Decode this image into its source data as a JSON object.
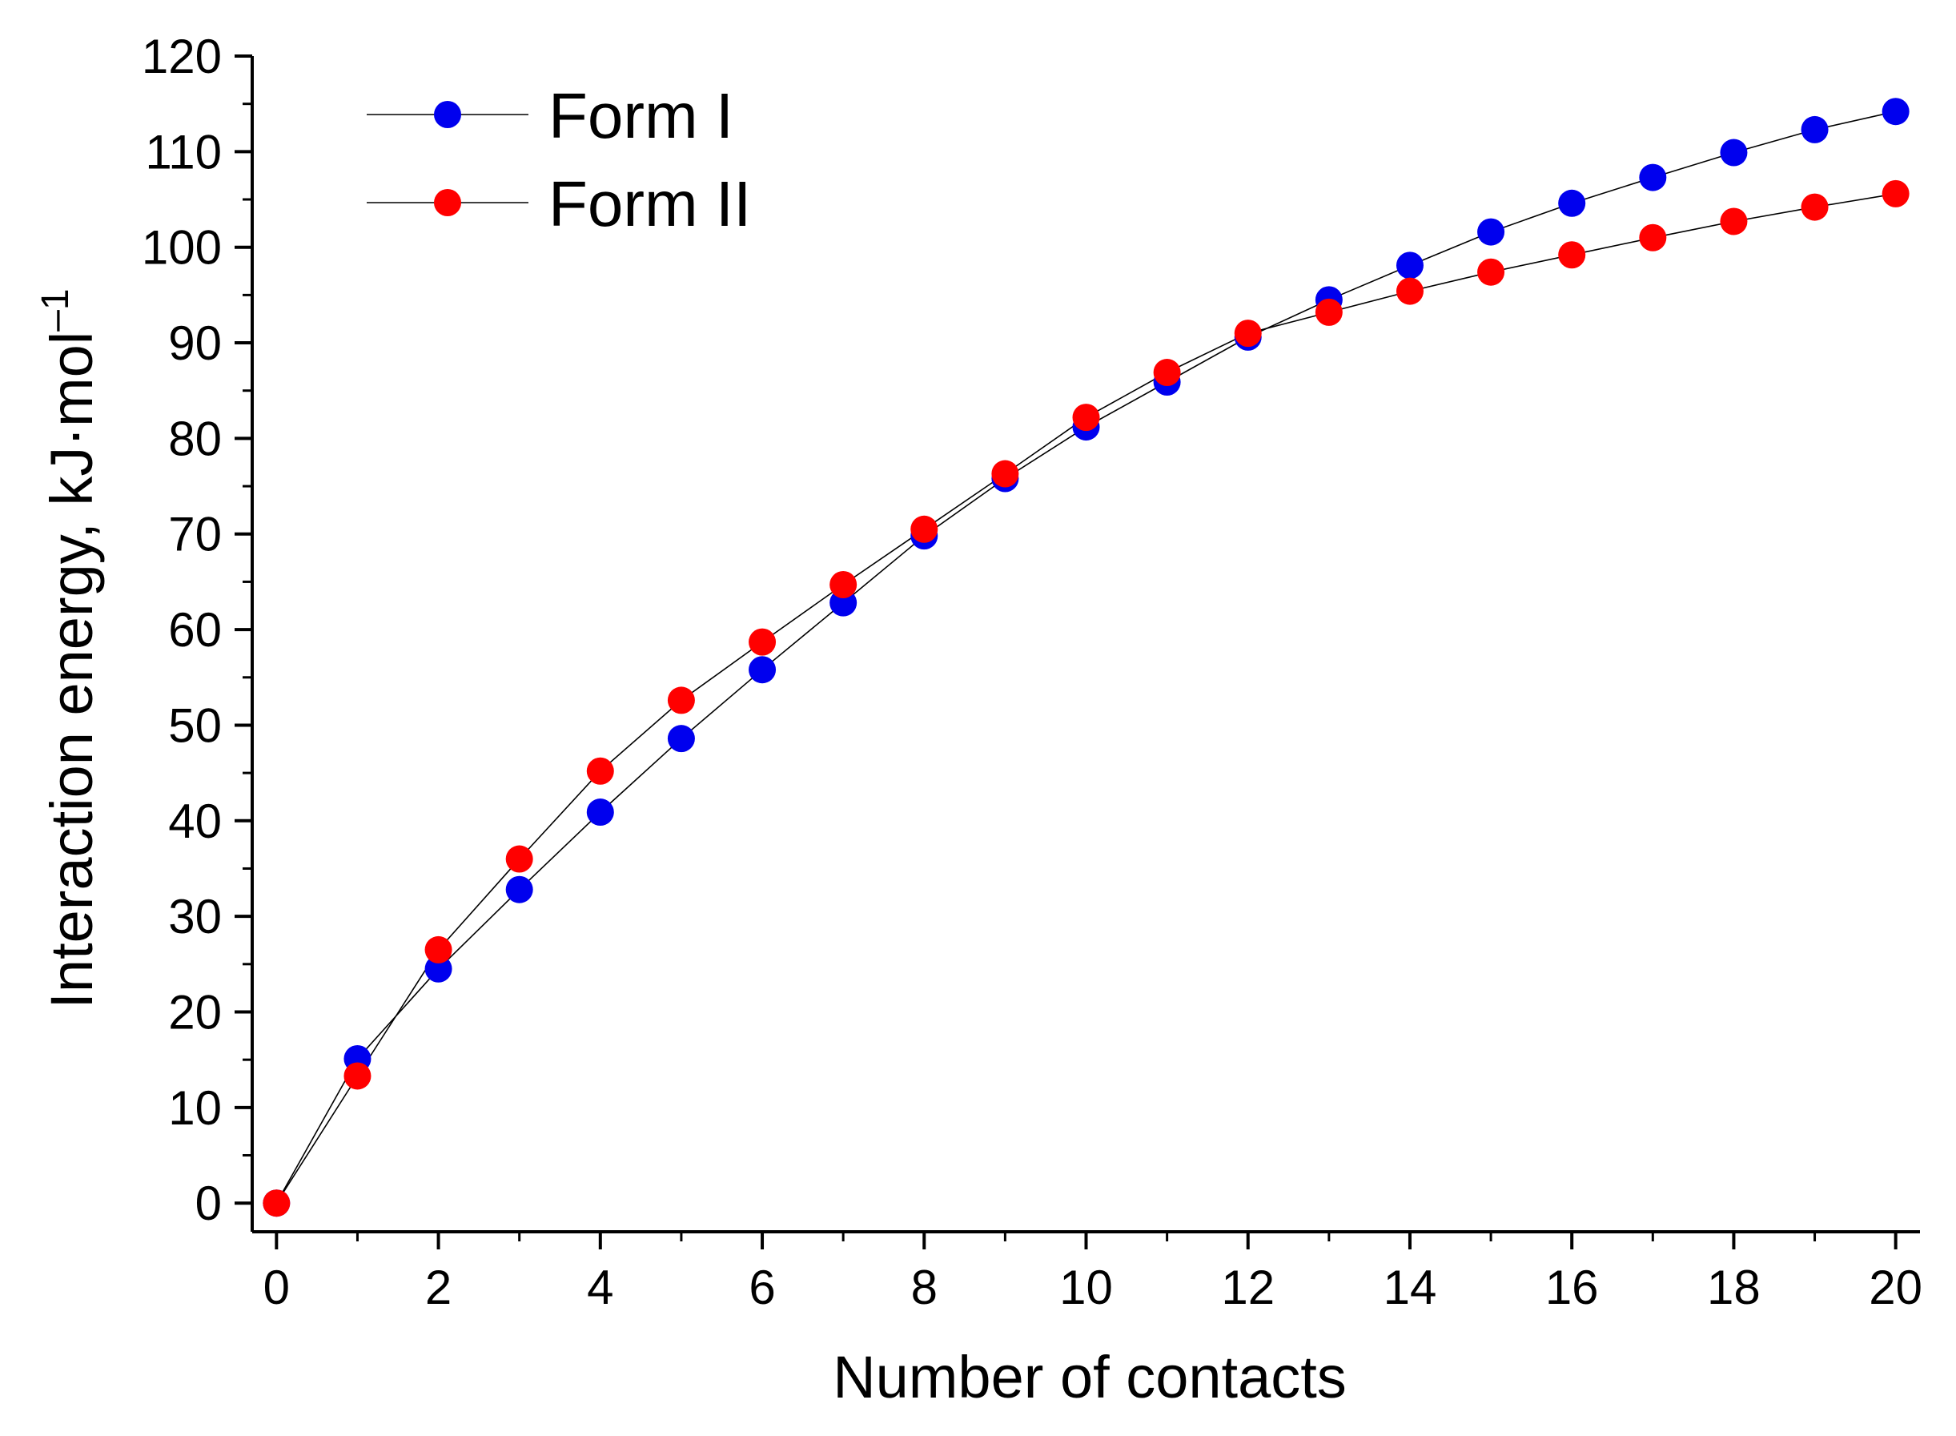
{
  "chart_data": {
    "type": "line",
    "title": "",
    "xlabel": "Number of contacts",
    "ylabel": {
      "main": "Interaction energy, kJ·mol",
      "superscript": "–1"
    },
    "xlim": [
      -0.3,
      20.3
    ],
    "ylim": [
      -3,
      120
    ],
    "x_ticks": [
      0,
      2,
      4,
      6,
      8,
      10,
      12,
      14,
      16,
      18,
      20
    ],
    "x_minor_step": 1,
    "y_ticks": [
      0,
      10,
      20,
      30,
      40,
      50,
      60,
      70,
      80,
      90,
      100,
      110,
      120
    ],
    "y_minor_step": 5,
    "grid": false,
    "legend_position": "top-left",
    "line_color": "#000000",
    "series": [
      {
        "name": "Form I",
        "color": "#0000ee",
        "x": [
          0,
          1,
          2,
          3,
          4,
          5,
          6,
          7,
          8,
          9,
          10,
          11,
          12,
          13,
          14,
          15,
          16,
          17,
          18,
          19,
          20
        ],
        "values": [
          0,
          15.1,
          24.5,
          32.8,
          40.9,
          48.6,
          55.8,
          62.8,
          69.8,
          75.8,
          81.2,
          85.9,
          90.6,
          94.5,
          98.1,
          101.6,
          104.6,
          107.3,
          109.9,
          112.3,
          114.2
        ]
      },
      {
        "name": "Form II",
        "color": "#ff0000",
        "x": [
          0,
          1,
          2,
          3,
          4,
          5,
          6,
          7,
          8,
          9,
          10,
          11,
          12,
          13,
          14,
          15,
          16,
          17,
          18,
          19,
          20
        ],
        "values": [
          0,
          13.3,
          26.5,
          36.0,
          45.2,
          52.6,
          58.7,
          64.7,
          70.5,
          76.3,
          82.2,
          86.9,
          91.0,
          93.2,
          95.4,
          97.4,
          99.2,
          101.0,
          102.7,
          104.2,
          105.6
        ]
      }
    ]
  }
}
